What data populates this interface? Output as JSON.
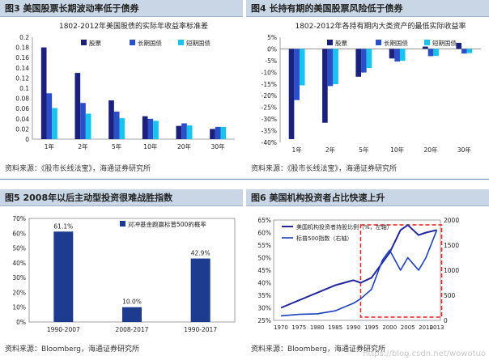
{
  "panels": {
    "p3": {
      "header": "图3  美国股票长期波动率低于债券",
      "source": "资料来源：《股市长线法宝》，海通证券研究所"
    },
    "p4": {
      "header": "图4  长持有期的美国股票风险低于债券",
      "source": "资料来源：《股市长线法宝》，海通证券研究所"
    },
    "p5": {
      "header": "图5  2008年以后主动型投资很难战胜指数",
      "source": "资料来源：Bloomberg，海通证券研究所"
    },
    "p6": {
      "header": "图6  美国机构投资者占比快速上升",
      "source": "资料来源：Bloomberg，海通证券研究所"
    }
  },
  "watermark": "https://blog.csdn.net/wowotuo",
  "colors": {
    "stocks": "#1b1f7e",
    "long_bond": "#2a4fc9",
    "short_bond": "#19c3ef",
    "inst_line": "#22289c",
    "sp_line": "#1d3fb8",
    "box": "#e0262b",
    "bar5": "#1e3c8f"
  },
  "chart_data": [
    {
      "id": "p3",
      "type": "bar",
      "title": "1802-2012年美国股债的实际年收益率标准差",
      "categories": [
        "1年",
        "2年",
        "5年",
        "10年",
        "20年",
        "30年"
      ],
      "series": [
        {
          "name": "股票",
          "values": [
            0.18,
            0.13,
            0.076,
            0.045,
            0.026,
            0.02
          ]
        },
        {
          "name": "长期国债",
          "values": [
            0.09,
            0.071,
            0.054,
            0.04,
            0.031,
            0.024
          ]
        },
        {
          "name": "短期国债",
          "values": [
            0.061,
            0.05,
            0.041,
            0.036,
            0.027,
            0.024
          ]
        }
      ],
      "ylim": [
        0,
        0.2
      ],
      "yticks": [
        0,
        0.02,
        0.04,
        0.06,
        0.08,
        0.1,
        0.12,
        0.14,
        0.16,
        0.18,
        0.2
      ],
      "ytick_labels": [
        "0",
        "0.02",
        "0.04",
        "0.06",
        "0.08",
        "0.1",
        "0.12",
        "0.14",
        "0.16",
        "0.18",
        "0.2"
      ],
      "legend": "top-right"
    },
    {
      "id": "p4",
      "type": "bar",
      "title": "1802-2012年各持有期内大类资产的最低实际收益率",
      "categories": [
        "1年",
        "2年",
        "5年",
        "10年",
        "20年",
        "30年"
      ],
      "series": [
        {
          "name": "股票",
          "values": [
            -38.6,
            -31.6,
            -11.9,
            -4.1,
            1.0,
            2.6
          ]
        },
        {
          "name": "长期国债",
          "values": [
            -21.9,
            -15.9,
            -10.1,
            -5.4,
            -3.1,
            -2.0
          ]
        },
        {
          "name": "短期国债",
          "values": [
            -15.6,
            -15.1,
            -8.2,
            -5.1,
            -3.0,
            -1.8
          ]
        }
      ],
      "ylim": [
        -40,
        5
      ],
      "yticks": [
        5,
        0,
        -5,
        -10,
        -15,
        -20,
        -25,
        -30,
        -35,
        -40
      ],
      "ytick_labels": [
        "5%",
        "0%",
        "-5%",
        "-10%",
        "-15%",
        "-20%",
        "-25%",
        "-30%",
        "-35%",
        "-40%"
      ],
      "legend": "top-right"
    },
    {
      "id": "p5",
      "type": "bar",
      "categories": [
        "1990-2007",
        "2008-2017",
        "1990-2017"
      ],
      "values": [
        61.1,
        10.0,
        42.9
      ],
      "value_labels": [
        "61.1%",
        "10.0%",
        "42.9%"
      ],
      "series_name": "对冲基金跑赢标普500的概率",
      "ylim": [
        0,
        70
      ],
      "yticks": [
        0,
        10,
        20,
        30,
        40,
        50,
        60,
        70
      ],
      "ytick_labels": [
        "0%",
        "10%",
        "20%",
        "30%",
        "40%",
        "50%",
        "60%",
        "70%"
      ],
      "legend": "top-right"
    },
    {
      "id": "p6",
      "type": "line",
      "x": [
        1970,
        1975,
        1980,
        1985,
        1990,
        1992,
        1995,
        1998,
        2000,
        2003,
        2005,
        2008,
        2010,
        2013
      ],
      "series": [
        {
          "name": "美国机构投资者持股比例（%，左轴）",
          "axis": "left",
          "values": [
            30,
            33,
            36,
            39,
            41,
            40,
            42,
            48,
            52,
            61,
            63,
            59,
            60,
            61
          ]
        },
        {
          "name": "标普500指数（右轴）",
          "axis": "right",
          "values": [
            90,
            120,
            130,
            190,
            340,
            430,
            620,
            1200,
            1400,
            1000,
            1250,
            1000,
            1250,
            1800
          ]
        }
      ],
      "xticks": [
        1970,
        1975,
        1980,
        1985,
        1990,
        1995,
        2000,
        2005,
        2010,
        2013
      ],
      "ylim_left": [
        25,
        65
      ],
      "yticks_left": [
        25,
        30,
        35,
        40,
        45,
        50,
        55,
        60,
        65
      ],
      "ytick_labels_left": [
        "25%",
        "30%",
        "35%",
        "40%",
        "45%",
        "50%",
        "55%",
        "60%",
        "65%"
      ],
      "ylim_right": [
        0,
        2000
      ],
      "yticks_right": [
        0,
        500,
        1000,
        1500,
        2000
      ],
      "highlight_x_range": [
        1992,
        2013
      ],
      "legend": "top-left"
    }
  ]
}
